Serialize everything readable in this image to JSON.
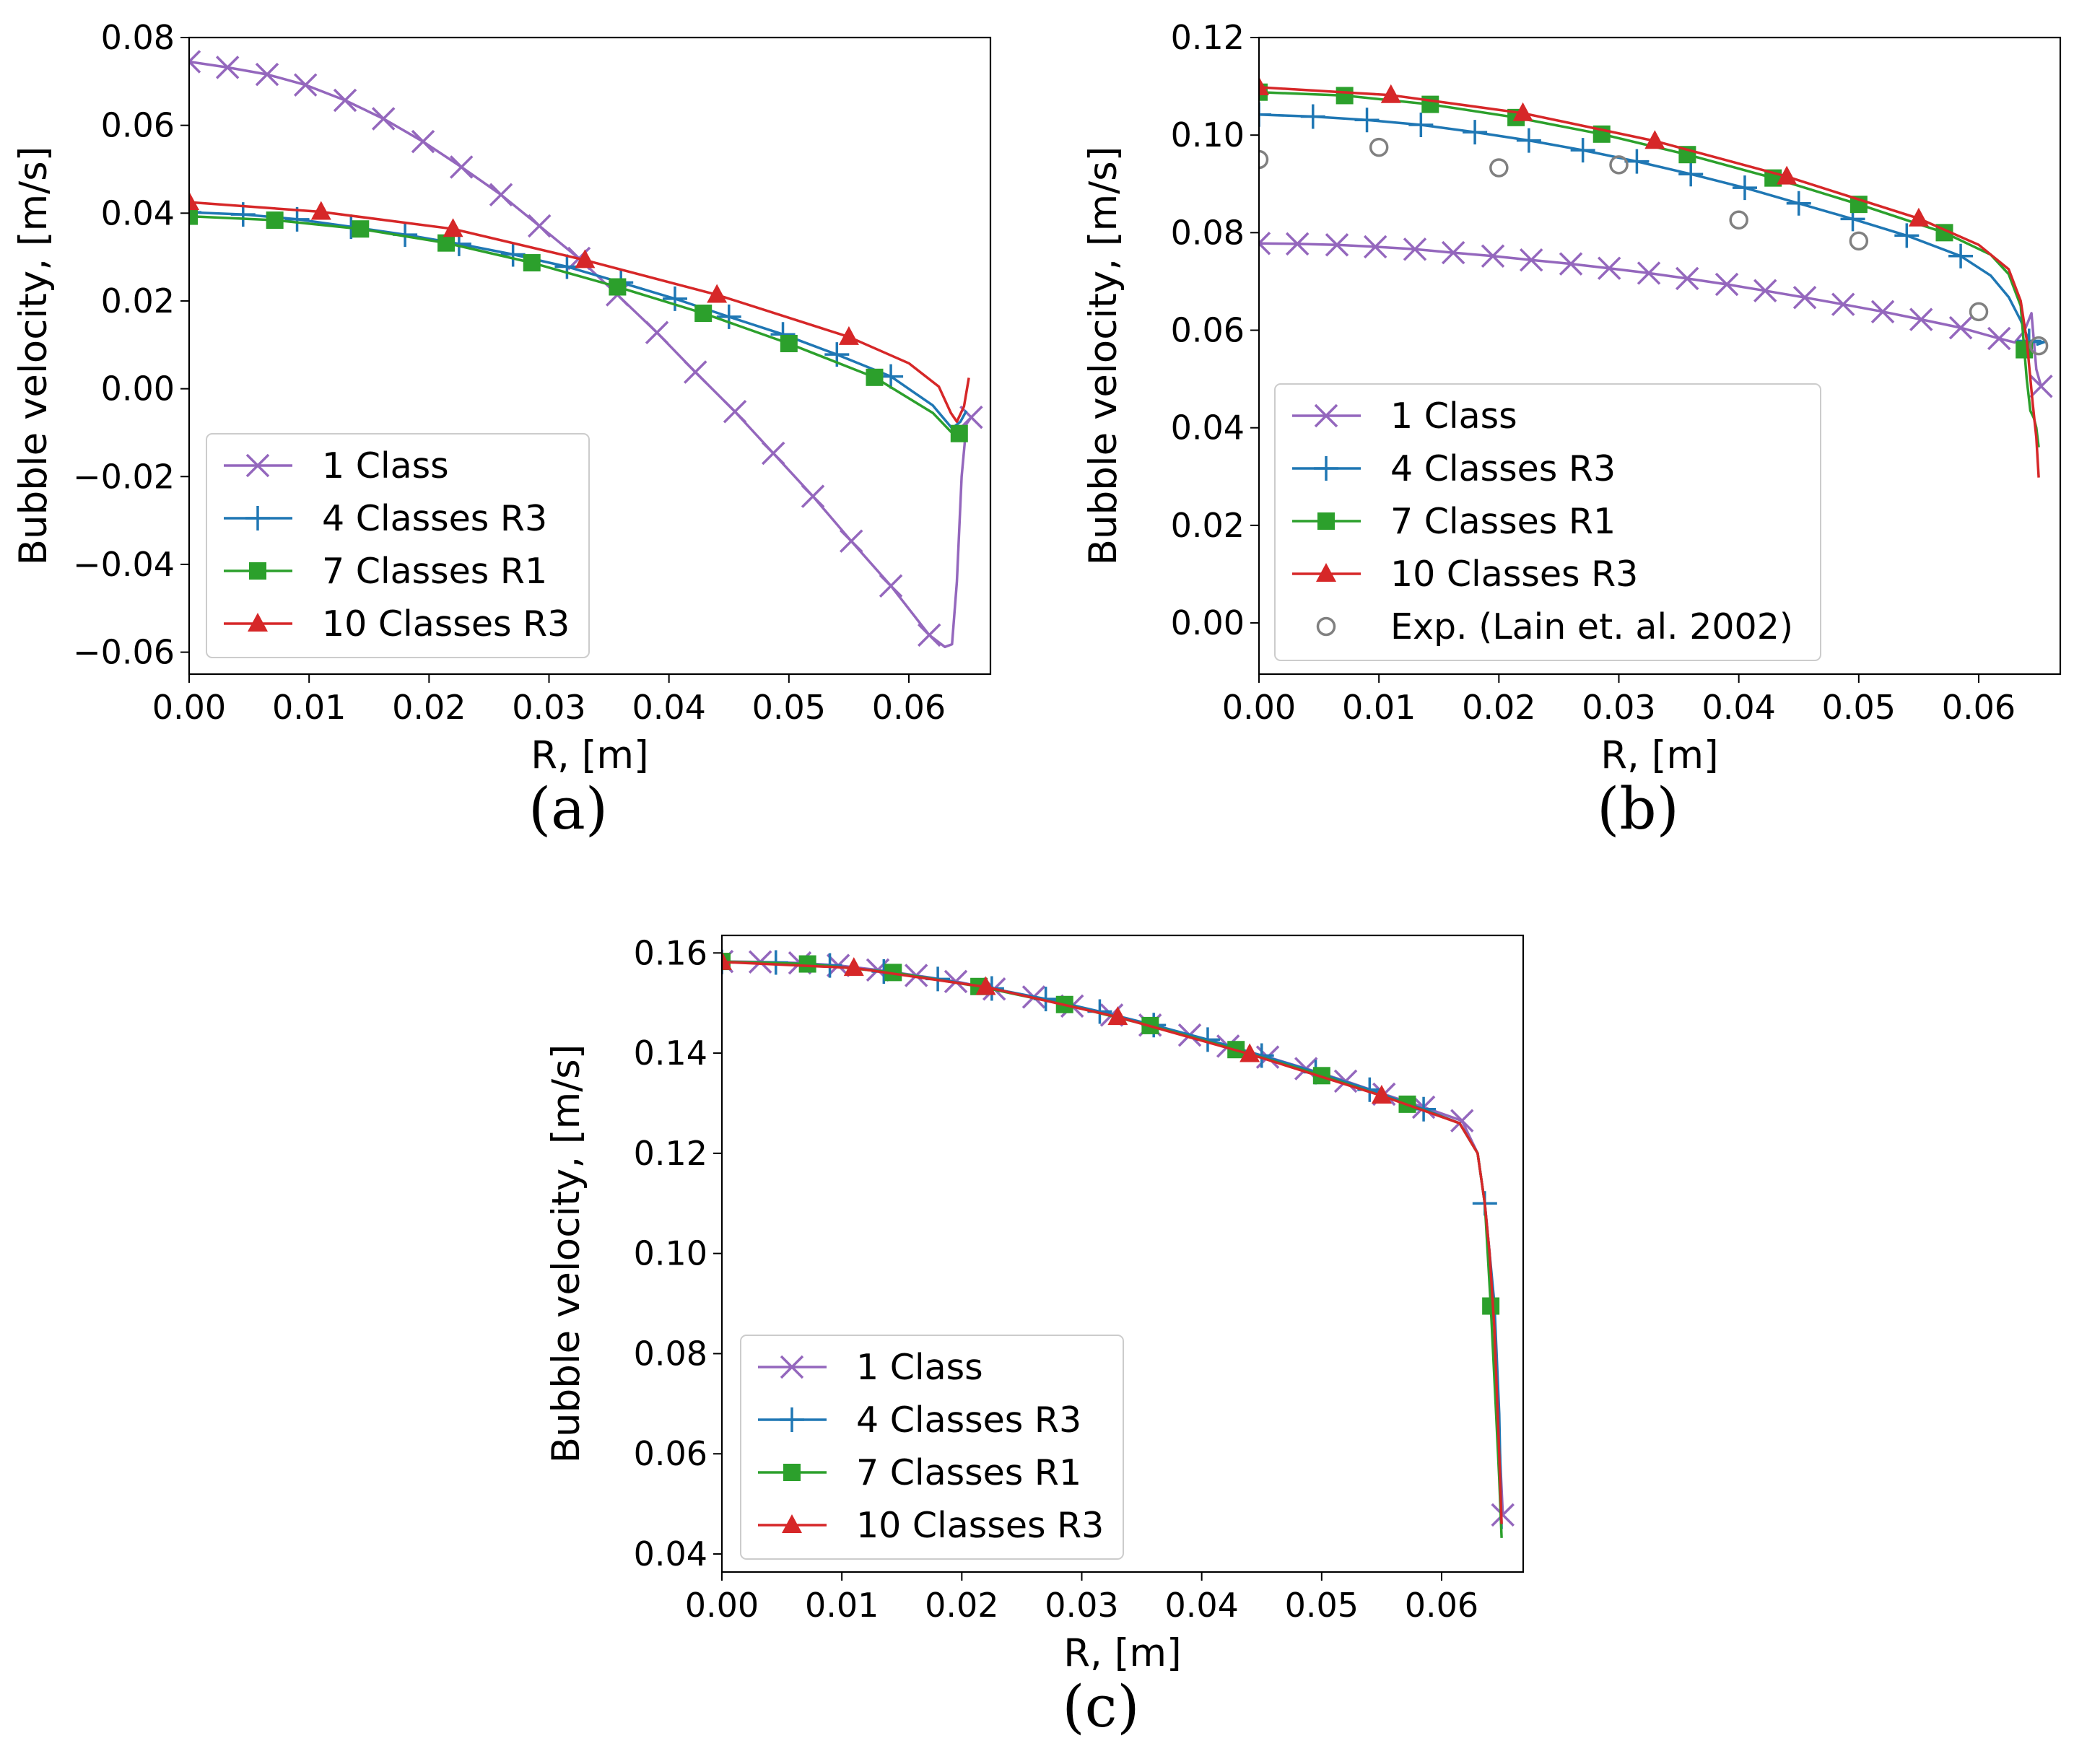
{
  "chart_data": [
    {
      "type": "line",
      "panel_label": "(a)",
      "xlabel": "R, [m]",
      "ylabel": "Bubble velocity, [m/s]",
      "xlim": [
        0.0,
        0.0668
      ],
      "ylim": [
        -0.065,
        0.08
      ],
      "xticks": [
        0.0,
        0.01,
        0.02,
        0.03,
        0.04,
        0.05,
        0.06
      ],
      "xtick_labels": [
        "0.00",
        "0.01",
        "0.02",
        "0.03",
        "0.04",
        "0.05",
        "0.06"
      ],
      "yticks": [
        -0.06,
        -0.04,
        -0.02,
        0.0,
        0.02,
        0.04,
        0.06,
        0.08
      ],
      "ytick_labels": [
        "−0.06",
        "−0.04",
        "−0.02",
        "0.00",
        "0.02",
        "0.04",
        "0.06",
        "0.08"
      ],
      "legend_position": "lower-left",
      "series": [
        {
          "name": "1 Class",
          "color": "#9467bd",
          "marker": "x",
          "x": [
            0.0,
            0.0032,
            0.0065,
            0.0097,
            0.013,
            0.0162,
            0.0195,
            0.0227,
            0.026,
            0.0292,
            0.0325,
            0.0357,
            0.039,
            0.0422,
            0.0455,
            0.0487,
            0.052,
            0.0552,
            0.0585,
            0.0617,
            0.063,
            0.0636,
            0.064,
            0.0644,
            0.0648,
            0.0652
          ],
          "y": [
            0.0745,
            0.0732,
            0.0716,
            0.0692,
            0.0657,
            0.0615,
            0.0563,
            0.0505,
            0.0442,
            0.0371,
            0.0297,
            0.0214,
            0.0128,
            0.0038,
            -0.0052,
            -0.0147,
            -0.0245,
            -0.0347,
            -0.0449,
            -0.0561,
            -0.0588,
            -0.0582,
            -0.044,
            -0.02,
            -0.008,
            -0.0065
          ],
          "marker_x": [
            0.0,
            0.0032,
            0.0065,
            0.0097,
            0.013,
            0.0162,
            0.0195,
            0.0227,
            0.026,
            0.0292,
            0.0325,
            0.0357,
            0.039,
            0.0422,
            0.0455,
            0.0487,
            0.052,
            0.0552,
            0.0585,
            0.0617,
            0.0652
          ]
        },
        {
          "name": "4 Classes R3",
          "color": "#1f77b4",
          "marker": "+",
          "x": [
            0.0,
            0.0045,
            0.009,
            0.0135,
            0.018,
            0.0225,
            0.027,
            0.0315,
            0.036,
            0.0405,
            0.045,
            0.0495,
            0.054,
            0.0585,
            0.062,
            0.0636,
            0.0643,
            0.0648
          ],
          "y": [
            0.0402,
            0.0397,
            0.0386,
            0.0369,
            0.0351,
            0.033,
            0.0306,
            0.0278,
            0.0242,
            0.0205,
            0.0164,
            0.0124,
            0.0078,
            0.0028,
            -0.0038,
            -0.009,
            -0.0075,
            -0.005
          ],
          "marker_x": [
            0.0,
            0.0045,
            0.009,
            0.0135,
            0.018,
            0.0225,
            0.027,
            0.0315,
            0.036,
            0.0405,
            0.045,
            0.0495,
            0.054,
            0.0585
          ]
        },
        {
          "name": "7 Classes R1",
          "color": "#2ca02c",
          "marker": "s",
          "x": [
            0.0,
            0.00714,
            0.01428,
            0.02143,
            0.02857,
            0.03571,
            0.04286,
            0.05,
            0.05714,
            0.062,
            0.0635,
            0.0642,
            0.0645
          ],
          "y": [
            0.0393,
            0.0384,
            0.0364,
            0.0332,
            0.0287,
            0.0232,
            0.0172,
            0.0103,
            0.0026,
            -0.0055,
            -0.0098,
            -0.0102,
            -0.0103
          ],
          "marker_x": [
            0.0,
            0.00714,
            0.01428,
            0.02143,
            0.02857,
            0.03571,
            0.04286,
            0.05,
            0.05714,
            0.0642
          ]
        },
        {
          "name": "10 Classes R3",
          "color": "#d62728",
          "marker": "^",
          "x": [
            0.0,
            0.011,
            0.022,
            0.033,
            0.044,
            0.055,
            0.06,
            0.0625,
            0.0635,
            0.064,
            0.0646,
            0.065
          ],
          "y": [
            0.0425,
            0.0403,
            0.0364,
            0.0293,
            0.0214,
            0.0118,
            0.0058,
            0.0005,
            -0.0055,
            -0.0075,
            -0.004,
            0.0025
          ],
          "marker_x": [
            0.0,
            0.011,
            0.022,
            0.033,
            0.044,
            0.055
          ]
        }
      ]
    },
    {
      "type": "line",
      "panel_label": "(b)",
      "xlabel": "R, [m]",
      "ylabel": "Bubble velocity, [m/s]",
      "xlim": [
        0.0,
        0.0668
      ],
      "ylim": [
        -0.0105,
        0.12
      ],
      "xticks": [
        0.0,
        0.01,
        0.02,
        0.03,
        0.04,
        0.05,
        0.06
      ],
      "xtick_labels": [
        "0.00",
        "0.01",
        "0.02",
        "0.03",
        "0.04",
        "0.05",
        "0.06"
      ],
      "yticks": [
        0.0,
        0.02,
        0.04,
        0.06,
        0.08,
        0.1,
        0.12
      ],
      "ytick_labels": [
        "0.00",
        "0.02",
        "0.04",
        "0.06",
        "0.08",
        "0.10",
        "0.12"
      ],
      "legend_position": "lower-left",
      "series": [
        {
          "name": "1 Class",
          "color": "#9467bd",
          "marker": "x",
          "x": [
            0.0,
            0.0032,
            0.0065,
            0.0097,
            0.013,
            0.0162,
            0.0195,
            0.0227,
            0.026,
            0.0292,
            0.0325,
            0.0357,
            0.039,
            0.0422,
            0.0455,
            0.0487,
            0.052,
            0.0552,
            0.0585,
            0.0617,
            0.063,
            0.0638,
            0.0644,
            0.0648,
            0.0652
          ],
          "y": [
            0.0778,
            0.0777,
            0.0775,
            0.0771,
            0.0766,
            0.0759,
            0.0752,
            0.0744,
            0.0736,
            0.0727,
            0.0717,
            0.0706,
            0.0694,
            0.0681,
            0.0667,
            0.0653,
            0.0638,
            0.0622,
            0.0605,
            0.0583,
            0.0575,
            0.0598,
            0.0635,
            0.052,
            0.0485
          ],
          "marker_x": [
            0.0,
            0.0032,
            0.0065,
            0.0097,
            0.013,
            0.0162,
            0.0195,
            0.0227,
            0.026,
            0.0292,
            0.0325,
            0.0357,
            0.039,
            0.0422,
            0.0455,
            0.0487,
            0.052,
            0.0552,
            0.0585,
            0.0617,
            0.0652
          ]
        },
        {
          "name": "4 Classes R3",
          "color": "#1f77b4",
          "marker": "+",
          "x": [
            0.0,
            0.0045,
            0.009,
            0.0135,
            0.018,
            0.0225,
            0.027,
            0.0315,
            0.036,
            0.0405,
            0.045,
            0.0495,
            0.054,
            0.0585,
            0.061,
            0.0625,
            0.0635,
            0.0642,
            0.0645,
            0.0655,
            0.0648
          ],
          "y": [
            0.1042,
            0.1038,
            0.1031,
            0.1021,
            0.1006,
            0.0989,
            0.0969,
            0.0946,
            0.092,
            0.0892,
            0.086,
            0.0828,
            0.0794,
            0.0752,
            0.0712,
            0.0668,
            0.062,
            0.0578,
            0.0576,
            0.0576,
            0.057
          ],
          "marker_x": [
            0.0,
            0.0045,
            0.009,
            0.0135,
            0.018,
            0.0225,
            0.027,
            0.0315,
            0.036,
            0.0405,
            0.045,
            0.0495,
            0.054,
            0.0585,
            0.0642
          ]
        },
        {
          "name": "7 Classes R1",
          "color": "#2ca02c",
          "marker": "s",
          "x": [
            0.0,
            0.00714,
            0.01428,
            0.02143,
            0.02857,
            0.03571,
            0.04286,
            0.05,
            0.05714,
            0.061,
            0.0625,
            0.0635,
            0.064,
            0.0643,
            0.0646,
            0.0648,
            0.065
          ],
          "y": [
            0.1088,
            0.1081,
            0.1063,
            0.1036,
            0.1002,
            0.096,
            0.0912,
            0.0858,
            0.08,
            0.0755,
            0.0715,
            0.065,
            0.05,
            0.0435,
            0.042,
            0.04,
            0.036
          ],
          "marker_x": [
            0.0,
            0.00714,
            0.01428,
            0.02143,
            0.02857,
            0.03571,
            0.04286,
            0.05,
            0.05714,
            0.0638
          ]
        },
        {
          "name": "10 Classes R3",
          "color": "#d62728",
          "marker": "^",
          "x": [
            0.0,
            0.011,
            0.022,
            0.033,
            0.044,
            0.055,
            0.06,
            0.0625,
            0.0635,
            0.064,
            0.0645,
            0.0648,
            0.065
          ],
          "y": [
            0.1098,
            0.1082,
            0.1045,
            0.0988,
            0.0915,
            0.0829,
            0.0775,
            0.0725,
            0.066,
            0.058,
            0.045,
            0.038,
            0.0298
          ],
          "marker_x": [
            0.0,
            0.011,
            0.022,
            0.033,
            0.044,
            0.055
          ]
        },
        {
          "name": "Exp. (Lain et. al. 2002)",
          "color": "#808080",
          "marker": "o-open",
          "line": false,
          "x": [
            0.0,
            0.01,
            0.02,
            0.03,
            0.04,
            0.05,
            0.06,
            0.065
          ],
          "y": [
            0.095,
            0.0975,
            0.0933,
            0.0939,
            0.0826,
            0.0783,
            0.0638,
            0.0568
          ],
          "marker_x": [
            0.0,
            0.01,
            0.02,
            0.03,
            0.04,
            0.05,
            0.06,
            0.065
          ]
        }
      ]
    },
    {
      "type": "line",
      "panel_label": "(c)",
      "xlabel": "R, [m]",
      "ylabel": "Bubble velocity, [m/s]",
      "xlim": [
        0.0,
        0.0668
      ],
      "ylim": [
        0.0364,
        0.1635
      ],
      "xticks": [
        0.0,
        0.01,
        0.02,
        0.03,
        0.04,
        0.05,
        0.06
      ],
      "xtick_labels": [
        "0.00",
        "0.01",
        "0.02",
        "0.03",
        "0.04",
        "0.05",
        "0.06"
      ],
      "yticks": [
        0.04,
        0.06,
        0.08,
        0.1,
        0.12,
        0.14,
        0.16
      ],
      "ytick_labels": [
        "0.04",
        "0.06",
        "0.08",
        "0.10",
        "0.12",
        "0.14",
        "0.16"
      ],
      "legend_position": "lower-left",
      "series": [
        {
          "name": "1 Class",
          "color": "#9467bd",
          "marker": "x",
          "x": [
            0.0,
            0.0032,
            0.0065,
            0.0097,
            0.013,
            0.0162,
            0.0195,
            0.0227,
            0.026,
            0.0292,
            0.0325,
            0.0357,
            0.039,
            0.0422,
            0.0455,
            0.0487,
            0.052,
            0.0552,
            0.0585,
            0.0617,
            0.063,
            0.0636,
            0.064,
            0.0643,
            0.0646,
            0.0649,
            0.0651
          ],
          "y": [
            0.1583,
            0.1582,
            0.158,
            0.1575,
            0.1566,
            0.1555,
            0.1543,
            0.1528,
            0.1512,
            0.1494,
            0.1476,
            0.1456,
            0.1436,
            0.1414,
            0.1392,
            0.1369,
            0.1344,
            0.1318,
            0.1292,
            0.1265,
            0.12,
            0.11,
            0.1,
            0.09,
            0.075,
            0.058,
            0.0478
          ],
          "marker_x": [
            0.0,
            0.0032,
            0.0065,
            0.0097,
            0.013,
            0.0162,
            0.0195,
            0.0227,
            0.026,
            0.0292,
            0.0325,
            0.0357,
            0.039,
            0.0422,
            0.0455,
            0.0487,
            0.052,
            0.0552,
            0.0585,
            0.0617,
            0.0651
          ]
        },
        {
          "name": "4 Classes R3",
          "color": "#1f77b4",
          "marker": "+",
          "x": [
            0.0,
            0.0045,
            0.009,
            0.0135,
            0.018,
            0.0225,
            0.027,
            0.0315,
            0.036,
            0.0405,
            0.045,
            0.0495,
            0.054,
            0.0585,
            0.0615,
            0.063,
            0.0636,
            0.064,
            0.0644,
            0.0648,
            0.065
          ],
          "y": [
            0.1582,
            0.1581,
            0.1575,
            0.1563,
            0.1548,
            0.1529,
            0.1508,
            0.1483,
            0.1456,
            0.1427,
            0.1395,
            0.1362,
            0.1327,
            0.1288,
            0.126,
            0.12,
            0.11,
            0.1,
            0.09,
            0.068,
            0.045
          ],
          "marker_x": [
            0.0,
            0.0045,
            0.009,
            0.0135,
            0.018,
            0.0225,
            0.027,
            0.0315,
            0.036,
            0.0405,
            0.045,
            0.0495,
            0.054,
            0.0585,
            0.0636
          ]
        },
        {
          "name": "7 Classes R1",
          "color": "#2ca02c",
          "marker": "s",
          "x": [
            0.0,
            0.00714,
            0.01428,
            0.02143,
            0.02857,
            0.03571,
            0.04286,
            0.05,
            0.05714,
            0.0615,
            0.063,
            0.0636,
            0.0641,
            0.0645,
            0.0648,
            0.065
          ],
          "y": [
            0.1583,
            0.1578,
            0.1561,
            0.1533,
            0.1497,
            0.1455,
            0.1407,
            0.1355,
            0.1298,
            0.126,
            0.12,
            0.11,
            0.0895,
            0.07,
            0.055,
            0.0432
          ],
          "marker_x": [
            0.0,
            0.00714,
            0.01428,
            0.02143,
            0.02857,
            0.03571,
            0.04286,
            0.05,
            0.05714,
            0.0641
          ]
        },
        {
          "name": "10 Classes R3",
          "color": "#d62728",
          "marker": "^",
          "x": [
            0.0,
            0.011,
            0.022,
            0.033,
            0.044,
            0.055,
            0.0615,
            0.063,
            0.0636,
            0.064,
            0.0644,
            0.0648,
            0.065
          ],
          "y": [
            0.1582,
            0.157,
            0.1532,
            0.1472,
            0.1398,
            0.1315,
            0.126,
            0.12,
            0.11,
            0.1,
            0.085,
            0.06,
            0.046
          ],
          "marker_x": [
            0.0,
            0.011,
            0.022,
            0.033,
            0.044,
            0.055
          ]
        }
      ]
    }
  ]
}
